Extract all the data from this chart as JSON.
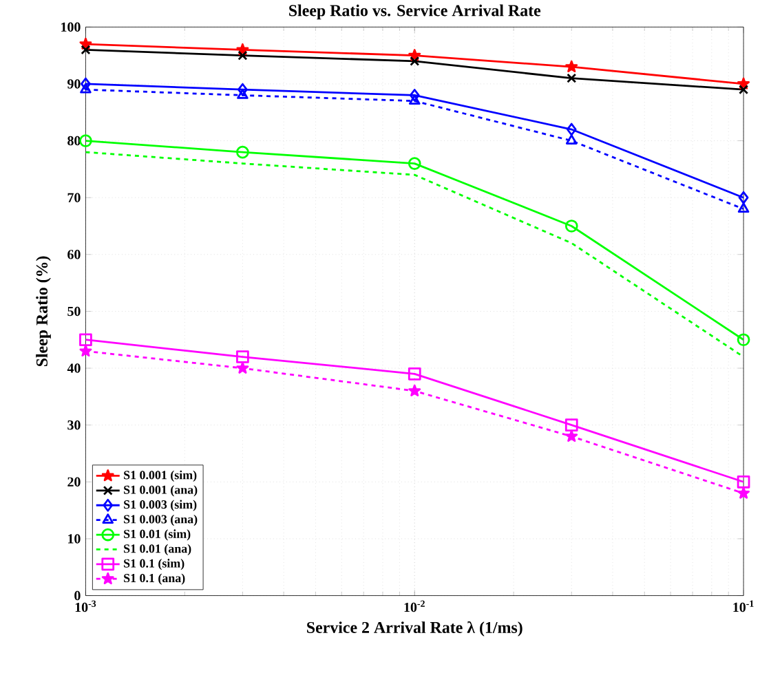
{
  "chart_data": {
    "type": "line",
    "title": "Sleep Ratio vs. Service Arrival Rate",
    "xlabel": "Service 2 Arrival Rate λ (1/ms)",
    "ylabel": "Sleep Ratio (%)",
    "x": [
      0.001,
      0.003,
      0.01,
      0.03,
      0.1
    ],
    "log": "x",
    "grid": true,
    "legend": "bottom left",
    "xlim": [
      0.001,
      0.1
    ],
    "xticks": [
      {
        "value": 0.001,
        "label": "10$^{-3}$"
      },
      {
        "value": 0.01,
        "label": "10$^{-2}$"
      },
      {
        "value": 0.1,
        "label": "10$^{-1}$"
      }
    ],
    "ylim": [
      0,
      100
    ],
    "yticks": [
      0,
      10,
      20,
      30,
      40,
      50,
      60,
      70,
      80,
      90,
      100
    ],
    "series": [
      {
        "name": "S1 0.001 (sim)",
        "color": "#ff0000",
        "marker": "star",
        "line_style": "solid",
        "values": [
          97,
          96,
          95,
          93,
          90
        ]
      },
      {
        "name": "S1 0.001 (ana)",
        "color": "#000000",
        "marker": "cross",
        "line_style": "solid",
        "values": [
          96,
          95,
          94,
          91,
          89
        ]
      },
      {
        "name": "S1 0.003 (sim)",
        "color": "#0000ff",
        "marker": "diamond",
        "line_style": "solid",
        "values": [
          90,
          89,
          88,
          82,
          70
        ]
      },
      {
        "name": "S1 0.003 (ana)",
        "color": "#0000ff",
        "marker": "triangle",
        "line_style": "dashed",
        "values": [
          89,
          88,
          87,
          80,
          68
        ]
      },
      {
        "name": "S1 0.01 (sim)",
        "color": "#00ff00",
        "marker": "circle",
        "line_style": "solid",
        "values": [
          80,
          78,
          76,
          65,
          45
        ]
      },
      {
        "name": "S1 0.01 (ana)",
        "color": "#00ff00",
        "marker": "none",
        "line_style": "dashed",
        "values": [
          78,
          76,
          74,
          62,
          42
        ]
      },
      {
        "name": "S1 0.1 (sim)",
        "color": "#ff00ff",
        "marker": "square",
        "line_style": "solid",
        "values": [
          45,
          42,
          39,
          30,
          20
        ]
      },
      {
        "name": "S1 0.1 (ana)",
        "color": "#ff00ff",
        "marker": "star",
        "line_style": "dashed",
        "values": [
          43,
          40,
          36,
          28,
          18
        ]
      }
    ]
  }
}
